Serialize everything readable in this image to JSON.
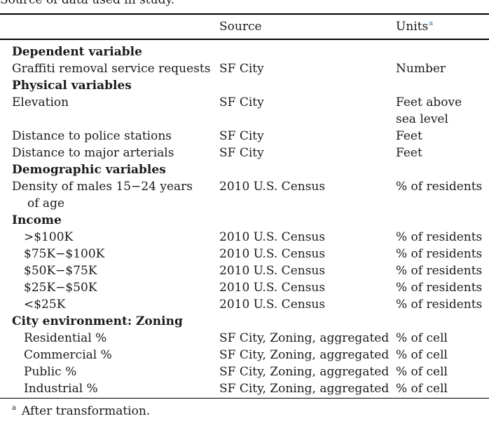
{
  "caption": "Source of data used in study.",
  "columns": {
    "source": "Source",
    "units": "Units",
    "units_note_marker": "a"
  },
  "rows": [
    {
      "kind": "heading",
      "label": "Dependent variable"
    },
    {
      "kind": "item",
      "label": "Graffiti removal service requests",
      "source": "SF City",
      "units": "Number"
    },
    {
      "kind": "heading",
      "label": "Physical variables"
    },
    {
      "kind": "item",
      "label": "Elevation",
      "source": "SF City",
      "units": "Feet above",
      "units_line2": "sea level"
    },
    {
      "kind": "item",
      "label": "Distance to police stations",
      "source": "SF City",
      "units": "Feet"
    },
    {
      "kind": "item",
      "label": "Distance to major arterials",
      "source": "SF City",
      "units": "Feet"
    },
    {
      "kind": "heading",
      "label": "Demographic variables"
    },
    {
      "kind": "item",
      "label": "Density of males 15−24 years",
      "label_line2": "of age",
      "source": "2010 U.S. Census",
      "units": "% of residents"
    },
    {
      "kind": "heading",
      "label": "Income"
    },
    {
      "kind": "indent",
      "label": ">$100K",
      "source": "2010 U.S. Census",
      "units": "% of residents"
    },
    {
      "kind": "indent",
      "label": "$75K−$100K",
      "source": "2010 U.S. Census",
      "units": "% of residents"
    },
    {
      "kind": "indent",
      "label": "$50K−$75K",
      "source": "2010 U.S. Census",
      "units": "% of residents"
    },
    {
      "kind": "indent",
      "label": "$25K−$50K",
      "source": "2010 U.S. Census",
      "units": "% of residents"
    },
    {
      "kind": "indent",
      "label": "<$25K",
      "source": "2010 U.S. Census",
      "units": "% of residents"
    },
    {
      "kind": "heading",
      "label": "City environment: Zoning"
    },
    {
      "kind": "indent",
      "label": "Residential %",
      "source": "SF City, Zoning, aggregated",
      "units": "% of cell"
    },
    {
      "kind": "indent",
      "label": "Commercial %",
      "source": "SF City, Zoning, aggregated",
      "units": "% of cell"
    },
    {
      "kind": "indent",
      "label": "Public %",
      "source": "SF City, Zoning, aggregated",
      "units": "% of cell"
    },
    {
      "kind": "indent",
      "label": "Industrial %",
      "source": "SF City, Zoning, aggregated",
      "units": "% of cell"
    }
  ],
  "footnote": {
    "marker": "a",
    "text": "After transformation."
  }
}
